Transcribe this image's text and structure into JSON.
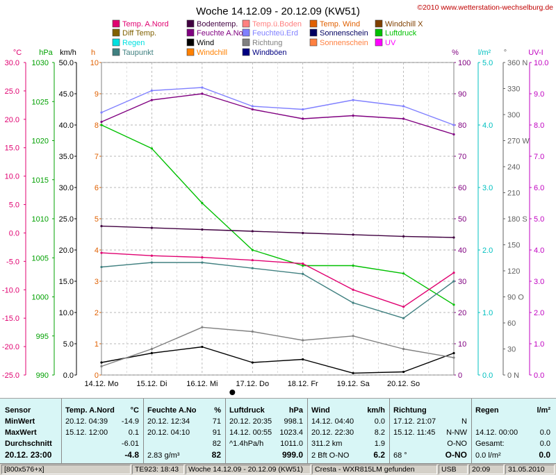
{
  "title": "Woche 14.12.09 - 20.12.09 (KW51)",
  "copyright": "©2010 www.wetterstation-wechselburg.de",
  "legend": [
    {
      "label": "Temp. A.Nord",
      "color": "#e00070"
    },
    {
      "label": "Bodentemp.",
      "color": "#400040"
    },
    {
      "label": "Temp.ü.Boden",
      "color": "#ff8080"
    },
    {
      "label": "Temp. Wind",
      "color": "#e06000"
    },
    {
      "label": "Windchill X",
      "color": "#804000"
    },
    {
      "label": "Diff Temp.",
      "color": "#806000"
    },
    {
      "label": "Feuchte A.No",
      "color": "#800080"
    },
    {
      "label": "Feuchteü.Erd",
      "color": "#8080ff"
    },
    {
      "label": "Sonnenschein",
      "color": "#000060"
    },
    {
      "label": "Luftdruck",
      "color": "#00c000"
    },
    {
      "label": "Regen",
      "color": "#00e0e0"
    },
    {
      "label": "Wind",
      "color": "#000000"
    },
    {
      "label": "Richtung",
      "color": "#808080"
    },
    {
      "label": "Sonnenschein",
      "color": "#ff8040"
    },
    {
      "label": "UV",
      "color": "#ff00ff"
    },
    {
      "label": "Taupunkt",
      "color": "#408080"
    },
    {
      "label": "Windchill",
      "color": "#ff8000"
    },
    {
      "label": "Windböen",
      "color": "#000080"
    }
  ],
  "axes": {
    "left": [
      {
        "unit": "°C",
        "color": "#e00070",
        "ticks": [
          "30.0",
          "25.0",
          "20.0",
          "15.0",
          "10.0",
          "5.0",
          "0.0",
          "-5.0",
          "-10.0",
          "-15.0",
          "-20.0",
          "-25.0"
        ]
      },
      {
        "unit": "hPa",
        "color": "#00a000",
        "ticks": [
          "1030",
          "1025",
          "1020",
          "1015",
          "1010",
          "1005",
          "1000",
          "995",
          "990"
        ]
      },
      {
        "unit": "km/h",
        "color": "#000000",
        "ticks": [
          "50.0",
          "45.0",
          "40.0",
          "35.0",
          "30.0",
          "25.0",
          "20.0",
          "15.0",
          "10.0",
          "5.0",
          "0.0"
        ]
      },
      {
        "unit": "h",
        "color": "#e06000",
        "ticks": [
          "10",
          "9",
          "8",
          "7",
          "6",
          "5",
          "4",
          "3",
          "2",
          "1",
          "0"
        ]
      }
    ],
    "right": [
      {
        "unit": "%",
        "color": "#800080",
        "ticks": [
          "100",
          "90",
          "80",
          "70",
          "60",
          "50",
          "40",
          "30",
          "20",
          "10",
          "0"
        ]
      },
      {
        "unit": "l/m²",
        "color": "#00c0c0",
        "ticks": [
          "5.0",
          "4.0",
          "3.0",
          "2.0",
          "1.0",
          "0.0"
        ]
      },
      {
        "unit": "°",
        "color": "#606060",
        "ticks": [
          "360 N",
          "330",
          "300",
          "270 W",
          "240",
          "210",
          "180 S",
          "150",
          "120",
          "90 O",
          "60",
          "30",
          "0 N"
        ]
      },
      {
        "unit": "UV-I",
        "color": "#c000c0",
        "ticks": [
          "10.0",
          "9.0",
          "8.0",
          "7.0",
          "6.0",
          "5.0",
          "4.0",
          "3.0",
          "2.0",
          "1.0",
          "0.0"
        ]
      }
    ],
    "x_ticks": [
      "14.12. Mo",
      "15.12. Di",
      "16.12. Mi",
      "17.12. Do",
      "18.12. Fr",
      "19.12. Sa",
      "20.12. So"
    ]
  },
  "chart_data": {
    "type": "line",
    "x": [
      "14.12.",
      "15.12.",
      "16.12.",
      "17.12.",
      "18.12.",
      "19.12.",
      "20.12.",
      "21.12."
    ],
    "series": [
      {
        "name": "Feuchte A.No",
        "color": "#800080",
        "unit": "%",
        "values": [
          81,
          88,
          90,
          85,
          82,
          83,
          82,
          77
        ]
      },
      {
        "name": "Feuchteü.Erd",
        "color": "#8080ff",
        "unit": "%",
        "values": [
          84,
          91,
          92,
          86,
          85,
          88,
          86,
          80
        ]
      },
      {
        "name": "Luftdruck",
        "color": "#00c000",
        "unit": "hPa",
        "values": [
          1022,
          1019,
          1012,
          1006,
          1004,
          1004,
          1003,
          999
        ]
      },
      {
        "name": "Bodentemp.",
        "color": "#400040",
        "unit": "°C",
        "values": [
          1.2,
          0.9,
          0.6,
          0.3,
          0.0,
          -0.3,
          -0.6,
          -0.8
        ]
      },
      {
        "name": "Temp. A.Nord",
        "color": "#e00070",
        "unit": "°C",
        "values": [
          -3.5,
          -4.0,
          -4.3,
          -4.8,
          -5.4,
          -10.0,
          -13.0,
          -7.0
        ]
      },
      {
        "name": "Taupunkt",
        "color": "#408080",
        "unit": "°C",
        "values": [
          -6.0,
          -5.2,
          -5.2,
          -6.2,
          -7.2,
          -12.3,
          -15.0,
          -8.5
        ]
      },
      {
        "name": "Wind",
        "color": "#000000",
        "unit": "km/h",
        "values": [
          2.0,
          3.5,
          4.5,
          2.0,
          2.5,
          0.3,
          0.5,
          3.5
        ]
      },
      {
        "name": "Richtung",
        "color": "#808080",
        "unit": "°",
        "values": [
          10,
          30,
          55,
          50,
          40,
          45,
          30,
          20
        ]
      }
    ],
    "ylim_temp": [
      -25,
      30
    ],
    "ylim_hpa": [
      990,
      1030
    ],
    "ylim_kmh": [
      0,
      50
    ],
    "ylim_pct": [
      0,
      100
    ]
  },
  "table": {
    "sensor": {
      "head": "Sensor",
      "rows": [
        "MinWert",
        "MaxWert",
        "Durchschnitt",
        "20.12.  23:00"
      ]
    },
    "temp": {
      "head": "Temp. A.Nord",
      "unit": "°C",
      "rows": [
        [
          "20.12.  04:39",
          "-14.9"
        ],
        [
          "15.12.  12:00",
          "0.1"
        ],
        [
          "",
          "-6.01"
        ],
        [
          "",
          "-4.8"
        ]
      ]
    },
    "feuchte": {
      "head": "Feuchte A.No",
      "unit": "%",
      "rows": [
        [
          "20.12.  12:34",
          "71"
        ],
        [
          "20.12.  04:10",
          "91"
        ],
        [
          "",
          "82"
        ],
        [
          "2.83 g/m³",
          "82"
        ]
      ]
    },
    "druck": {
      "head": "Luftdruck",
      "unit": "hPa",
      "rows": [
        [
          "20.12.  20:35",
          "998.1"
        ],
        [
          "14.12.  00:55",
          "1023.4"
        ],
        [
          "^1.4hPa/h",
          "1011.0"
        ],
        [
          "",
          "999.0"
        ]
      ]
    },
    "wind": {
      "head": "Wind",
      "unit": "km/h",
      "rows": [
        [
          "14.12.  04:40",
          "0.0"
        ],
        [
          "20.12.  22:30",
          "8.2"
        ],
        [
          "311.2 km",
          "1.9"
        ],
        [
          "2 Bft O-NO",
          "6.2"
        ]
      ]
    },
    "richtung": {
      "head": "Richtung",
      "unit": "",
      "rows": [
        [
          "17.12.  21:07",
          "N"
        ],
        [
          "15.12.  11:45",
          "N-NW"
        ],
        [
          "",
          "O-NO"
        ],
        [
          "68 °",
          "O-NO"
        ]
      ]
    },
    "regen": {
      "head": "Regen",
      "unit": "l/m²",
      "rows": [
        [
          "14.12.  00:00",
          "0.0"
        ],
        [
          "Gesamt:",
          "0.0"
        ],
        [
          "0.0 l/m²",
          "0.0"
        ]
      ]
    }
  },
  "status": [
    "[800x576+x]",
    "TE923: 18:43",
    "Woche 14.12.09 - 20.12.09 (KW51)",
    "Cresta - WXR815LM gefunden",
    "USB",
    "20:09",
    "31.05.2010"
  ]
}
